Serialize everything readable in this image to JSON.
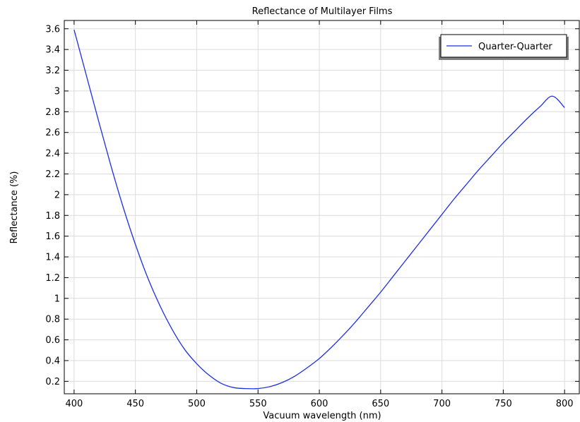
{
  "chart_data": {
    "type": "line",
    "title": "Reflectance of Multilayer Films",
    "xlabel": "Vacuum wavelength (nm)",
    "ylabel": "Reflectance (%)",
    "xlim": [
      392,
      812
    ],
    "ylim": [
      0.08,
      3.68
    ],
    "xticks": [
      400,
      450,
      500,
      550,
      600,
      650,
      700,
      750,
      800
    ],
    "yticks": [
      0.2,
      0.4,
      0.6,
      0.8,
      1,
      1.2,
      1.4,
      1.6,
      1.8,
      2,
      2.2,
      2.4,
      2.6,
      2.8,
      3,
      3.2,
      3.4,
      3.6
    ],
    "grid": true,
    "legend_position": "top-right",
    "series": [
      {
        "name": "Quarter-Quarter",
        "color": "#1f2fdf",
        "x": [
          400,
          410,
          420,
          430,
          440,
          450,
          460,
          470,
          480,
          490,
          500,
          510,
          520,
          530,
          540,
          550,
          560,
          570,
          580,
          590,
          600,
          610,
          620,
          630,
          640,
          650,
          660,
          670,
          680,
          690,
          700,
          710,
          720,
          730,
          740,
          750,
          760,
          770,
          780,
          790,
          800
        ],
        "y": [
          3.59,
          3.15,
          2.71,
          2.28,
          1.88,
          1.52,
          1.2,
          0.93,
          0.7,
          0.51,
          0.37,
          0.26,
          0.18,
          0.14,
          0.13,
          0.13,
          0.15,
          0.19,
          0.25,
          0.33,
          0.42,
          0.53,
          0.65,
          0.78,
          0.92,
          1.06,
          1.21,
          1.36,
          1.51,
          1.66,
          1.81,
          1.96,
          2.1,
          2.24,
          2.37,
          2.5,
          2.62,
          2.74,
          2.85,
          2.95,
          2.84
        ]
      }
    ]
  }
}
